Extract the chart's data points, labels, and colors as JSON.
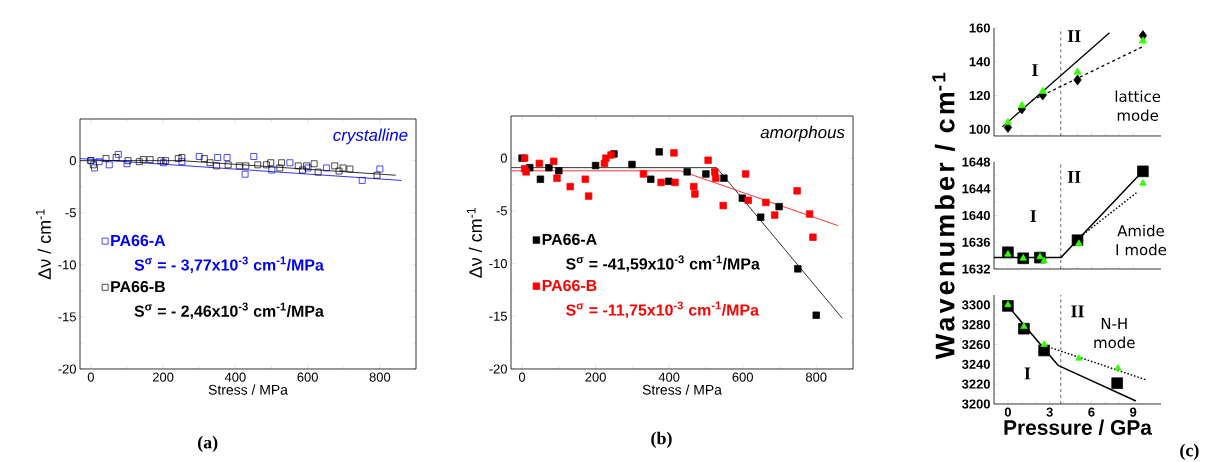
{
  "chart_data": [
    {
      "type": "scatter",
      "xlabel": "Stress / MPa",
      "ylabel": "Δν / cm$^{-1}$",
      "xlim": [
        -30,
        900
      ],
      "ylim": [
        -20,
        4
      ],
      "xticks": [
        0,
        200,
        400,
        600,
        800
      ],
      "yticks": [
        -20,
        -15,
        -10,
        -5,
        0
      ],
      "legend": "left",
      "annotations": [
        "crystalline",
        "S$^{σ}$ = - 3,77x10$^{-3}$ cm$^{-1}$/MPa",
        "S$^{σ}$ = - 2,46x10$^{-3}$ cm$^{-1}$/MPa",
        "(a)"
      ],
      "series": [
        {
          "name": "PA66-A",
          "color": "#0000ff",
          "marker": "square",
          "x": [
            0,
            10,
            23,
            51,
            76,
            100,
            201,
            252,
            300,
            351,
            377,
            427,
            451,
            501,
            551,
            601,
            652,
            751,
            800
          ],
          "values": [
            0,
            -0.7,
            -0.1,
            -0.4,
            0.6,
            -0.3,
            -0.2,
            -0.1,
            0.4,
            0.3,
            0.3,
            -1.3,
            0.4,
            -0.9,
            -0.2,
            -0.7,
            -0.7,
            -1.9,
            -0.8
          ]
        },
        {
          "name": "PA66-B",
          "color": "#000000",
          "marker": "square",
          "x": [
            0,
            7,
            42,
            70,
            103,
            134,
            145,
            164,
            194,
            207,
            242,
            252,
            314,
            330,
            348,
            380,
            411,
            429,
            462,
            486,
            498,
            523,
            528,
            574,
            586,
            597,
            618,
            629,
            675,
            687,
            698,
            717,
            792
          ],
          "values": [
            0,
            -0.4,
            0.2,
            0.3,
            0,
            -0.1,
            0.1,
            0.1,
            0,
            0,
            0.2,
            0.3,
            0.2,
            -0.2,
            -0.5,
            -0.4,
            -0.5,
            -0.5,
            -0.4,
            -0.4,
            -0.2,
            -0.7,
            -0.2,
            -0.5,
            -0.9,
            -0.5,
            -0.3,
            -1.1,
            -0.5,
            -1,
            -0.7,
            -0.8,
            -1.4
          ]
        },
        {
          "type": "line",
          "color": "#0000ff",
          "marker": "none",
          "x": [
            -30,
            860
          ],
          "values": [
            0.2,
            -1.9
          ]
        },
        {
          "type": "line",
          "color": "#000000",
          "marker": "none",
          "x": [
            -30,
            250,
            844
          ],
          "values": [
            0,
            0,
            -1.4
          ]
        }
      ]
    },
    {
      "type": "scatter",
      "xlabel": "Stress / MPa",
      "ylabel": "Δν / cm$^{-1}$",
      "xlim": [
        -30,
        900
      ],
      "ylim": [
        -20,
        4
      ],
      "xticks": [
        0,
        200,
        400,
        600,
        800
      ],
      "yticks": [
        -20,
        -15,
        -10,
        -5,
        0
      ],
      "legend": "left",
      "annotations": [
        "amorphous",
        "S$^{σ}$ = -41,59x10$^{-3}$ cm$^{-1}$/MPa",
        "S$^{σ}$ = -11,75x10$^{-3}$ cm$^{-1}$/MPa",
        "(b)"
      ],
      "series": [
        {
          "name": "PA66-A",
          "color": "#000000",
          "marker": "square",
          "x": [
            0,
            21,
            50,
            73,
            100,
            200,
            250,
            299,
            350,
            373,
            399,
            449,
            500,
            549,
            599,
            649,
            699,
            750,
            800
          ],
          "values": [
            0,
            -0.9,
            -2,
            -0.9,
            -1.2,
            -0.7,
            0.4,
            -0.6,
            -2,
            0.6,
            -2.2,
            -1.3,
            -1.5,
            -1.9,
            -3.8,
            -5.6,
            -4.6,
            -10.5,
            -14.9
          ]
        },
        {
          "name": "PA66-B",
          "color": "#ff0000",
          "marker": "square",
          "x": [
            7,
            7,
            11,
            47,
            86,
            95,
            131,
            172,
            181,
            224,
            228,
            242,
            330,
            378,
            413,
            416,
            467,
            470,
            506,
            524,
            527,
            547,
            608,
            615,
            663,
            687,
            748,
            782,
            791
          ],
          "values": [
            0,
            -1,
            -1.3,
            -0.5,
            -0.3,
            -1.9,
            -2.7,
            -2,
            -3.6,
            -0.5,
            0,
            0.3,
            -1.5,
            -2.3,
            0.5,
            -2.3,
            -2.7,
            -3.4,
            -0.2,
            -1.3,
            -1.9,
            -4.5,
            -1.5,
            -4,
            -4.2,
            -5.4,
            -3.1,
            -5.3,
            -7.5
          ]
        },
        {
          "type": "line",
          "color": "#000000",
          "marker": "none",
          "x": [
            -29,
            529,
            871
          ],
          "values": [
            -0.9,
            -0.9,
            -15.2
          ]
        },
        {
          "type": "line",
          "color": "#ff0000",
          "marker": "none",
          "x": [
            -29,
            431,
            859
          ],
          "values": [
            -1.2,
            -1.2,
            -6.4
          ]
        }
      ]
    },
    {
      "type": "scatter",
      "xlim": [
        -1,
        11
      ],
      "ylim": [
        96,
        160
      ],
      "xticks": [
        0,
        3,
        6,
        9
      ],
      "yticks": [
        100,
        120,
        140,
        160
      ],
      "tick_labels": "y",
      "ref_lines": [
        {
          "axis": "x",
          "value": 3.8,
          "line_style": "dashed"
        }
      ],
      "annotations": [
        "II",
        "I",
        "lattice mode"
      ],
      "series": [
        {
          "type": "line",
          "color": "#000000",
          "marker": "none",
          "x": [
            -0.4,
            7.3
          ],
          "values": [
            101.4,
            157.2
          ]
        },
        {
          "type": "line",
          "color": "#000000",
          "marker": "none",
          "line_style": "dashed",
          "x": [
            1.7,
            9.7
          ],
          "values": [
            117,
            149
          ]
        },
        {
          "color": "#000000",
          "marker": "diamond",
          "x": [
            0,
            1,
            2.5,
            5,
            9.7
          ],
          "values": [
            101,
            112,
            120.3,
            129.2,
            155.5
          ]
        },
        {
          "color": "#33ff00",
          "marker": "triangle",
          "x": [
            0,
            1,
            2.5,
            5,
            9.7
          ],
          "values": [
            104,
            114,
            122.5,
            133.8,
            152.3
          ]
        }
      ]
    },
    {
      "type": "scatter",
      "ylabel": "Wavenumber / cm$^{-1}$",
      "xlim": [
        -1,
        11
      ],
      "ylim": [
        1632,
        1648
      ],
      "xticks": [
        0,
        3,
        6,
        9
      ],
      "yticks": [
        1632,
        1636,
        1640,
        1644,
        1648
      ],
      "tick_labels": "y",
      "ref_lines": [
        {
          "axis": "x",
          "value": 3.8,
          "line_style": "dashed"
        }
      ],
      "annotations": [
        "II",
        "I",
        "Amide I mode"
      ],
      "series": [
        {
          "type": "line",
          "color": "#000000",
          "marker": "none",
          "x": [
            -1,
            3.8,
            9.55
          ],
          "values": [
            1633.7,
            1633.7,
            1646.3
          ]
        },
        {
          "type": "line",
          "color": "#000000",
          "marker": "none",
          "line_style": "dotted",
          "x": [
            5,
            9.3
          ],
          "values": [
            1636.5,
            1643.5
          ]
        },
        {
          "color": "#000000",
          "marker": "square",
          "x": [
            0,
            1.1,
            2.3,
            5,
            9.7
          ],
          "values": [
            1634.5,
            1633.6,
            1633.7,
            1636.3,
            1646.6
          ]
        },
        {
          "color": "#33ff00",
          "marker": "triangle",
          "x": [
            0,
            1.1,
            2.3,
            2.6,
            5.1,
            9.7
          ],
          "values": [
            1634.2,
            1633.6,
            1633.8,
            1633.2,
            1635.8,
            1644.8
          ]
        }
      ]
    },
    {
      "type": "scatter",
      "xlabel": "Pressure / GPa",
      "xlim": [
        -1,
        11
      ],
      "ylim": [
        3200,
        3310
      ],
      "xticks": [
        0,
        3,
        6,
        9
      ],
      "yticks": [
        3200,
        3220,
        3240,
        3260,
        3280,
        3300
      ],
      "ref_lines": [
        {
          "axis": "x",
          "value": 3.8,
          "line_style": "dashed"
        }
      ],
      "annotations": [
        "II",
        "N-H mode",
        "I",
        "(c)"
      ],
      "series": [
        {
          "type": "line",
          "color": "#000000",
          "marker": "none",
          "x": [
            0,
            3.6,
            9.2
          ],
          "values": [
            3299,
            3239,
            3203
          ]
        },
        {
          "type": "line",
          "color": "#000000",
          "marker": "none",
          "line_style": "dotted",
          "x": [
            2.4,
            10
          ],
          "values": [
            3260,
            3224
          ]
        },
        {
          "color": "#000000",
          "marker": "square",
          "x": [
            0,
            1.15,
            2.6,
            7.85
          ],
          "values": [
            3299,
            3276,
            3254,
            3221
          ]
        },
        {
          "color": "#33ff00",
          "marker": "triangle",
          "x": [
            0,
            1.15,
            2.6,
            5.1,
            7.9
          ],
          "values": [
            3300,
            3278,
            3260,
            3246,
            3236
          ]
        }
      ]
    }
  ]
}
